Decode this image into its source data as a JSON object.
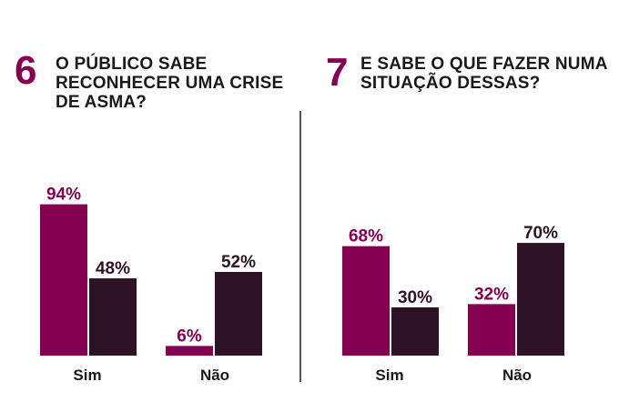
{
  "colors": {
    "sim": "#850050",
    "nao": "#2e1225",
    "accent": "#850050",
    "text": "#1a1a1a"
  },
  "questions": [
    {
      "number": "6",
      "title_lines": [
        "O PÚBLICO SABE",
        "RECONHECER UMA CRISE",
        "DE ASMA?"
      ]
    },
    {
      "number": "7",
      "title_lines": [
        "E SABE O QUE FAZER NUMA",
        "SITUAÇÃO DESSAS?"
      ]
    }
  ],
  "chart_data": [
    {
      "type": "bar",
      "categories": [
        "Sim",
        "Não"
      ],
      "series": [
        {
          "values": [
            94,
            6
          ],
          "labels": [
            "94%",
            "6%"
          ],
          "color": "#850050"
        },
        {
          "values": [
            48,
            52
          ],
          "labels": [
            "48%",
            "52%"
          ],
          "color": "#2e1225"
        }
      ],
      "ylim": [
        0,
        100
      ]
    },
    {
      "type": "bar",
      "categories": [
        "Sim",
        "Não"
      ],
      "series": [
        {
          "values": [
            68,
            32
          ],
          "labels": [
            "68%",
            "32%"
          ],
          "color": "#850050"
        },
        {
          "values": [
            30,
            70
          ],
          "labels": [
            "30%",
            "70%"
          ],
          "color": "#2e1225"
        }
      ],
      "ylim": [
        0,
        100
      ]
    }
  ]
}
